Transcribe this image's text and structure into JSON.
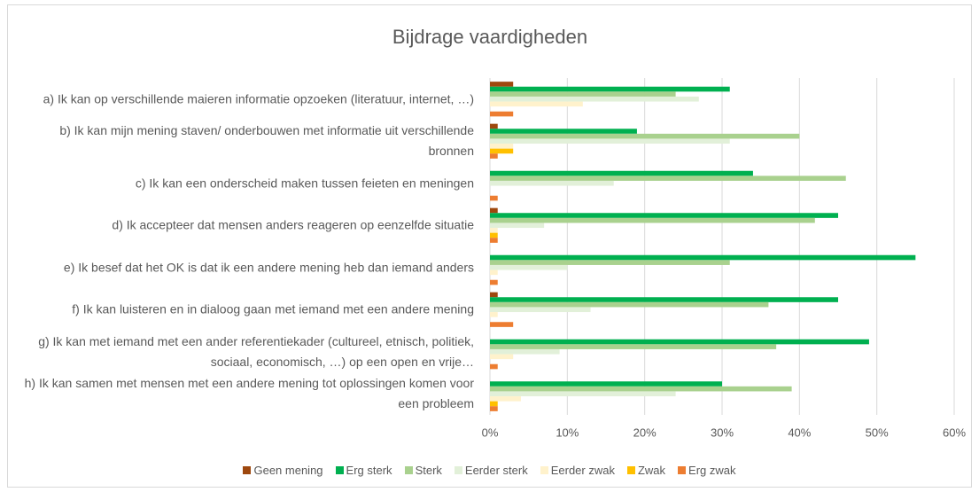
{
  "chart_data": {
    "type": "hbar",
    "title": "Bijdrage vaardigheden",
    "categories": [
      "a) Ik kan op verschillende maieren informatie opzoeken (literatuur, internet, …)",
      "b) Ik kan mijn mening staven/ onderbouwen met informatie uit verschillende bronnen",
      "c) Ik kan een onderscheid maken tussen feieten en meningen",
      "d) Ik accepteer dat mensen anders reageren op eenzelfde situatie",
      "e) Ik besef dat het OK is dat ik een andere mening heb dan iemand anders",
      "f) Ik kan luisteren en in dialoog gaan met iemand met een andere mening",
      "g) Ik kan met iemand met een ander referentiekader (cultureel, etnisch, politiek, sociaal, economisch, …) op een open en vrije…",
      "h) Ik kan samen met mensen met een andere mening tot oplossingen komen voor een probleem"
    ],
    "series": [
      {
        "name": "Geen mening",
        "color": "#9e480e",
        "values": [
          3,
          1,
          0,
          1,
          0,
          1,
          0,
          0
        ]
      },
      {
        "name": "Erg sterk",
        "color": "#00b050",
        "values": [
          31,
          19,
          34,
          45,
          55,
          45,
          49,
          30
        ]
      },
      {
        "name": "Sterk",
        "color": "#a9d18e",
        "values": [
          24,
          40,
          46,
          42,
          31,
          36,
          37,
          39
        ]
      },
      {
        "name": "Eerder sterk",
        "color": "#e2f0d9",
        "values": [
          27,
          31,
          16,
          7,
          10,
          13,
          9,
          24
        ]
      },
      {
        "name": "Eerder zwak",
        "color": "#fff2cc",
        "values": [
          12,
          3,
          0,
          1,
          1,
          1,
          3,
          4
        ]
      },
      {
        "name": "Zwak",
        "color": "#ffc000",
        "values": [
          0,
          3,
          0,
          1,
          0,
          0,
          0,
          1
        ]
      },
      {
        "name": "Erg zwak",
        "color": "#ed7d31",
        "values": [
          3,
          1,
          1,
          1,
          1,
          3,
          1,
          1
        ]
      }
    ],
    "xlim": [
      0,
      60
    ],
    "xticks": [
      {
        "value": 0,
        "label": "0%"
      },
      {
        "value": 10,
        "label": "10%"
      },
      {
        "value": 20,
        "label": "20%"
      },
      {
        "value": 30,
        "label": "30%"
      },
      {
        "value": 40,
        "label": "40%"
      },
      {
        "value": 50,
        "label": "50%"
      },
      {
        "value": 60,
        "label": "60%"
      }
    ],
    "grid": true,
    "legend": "bottom"
  }
}
